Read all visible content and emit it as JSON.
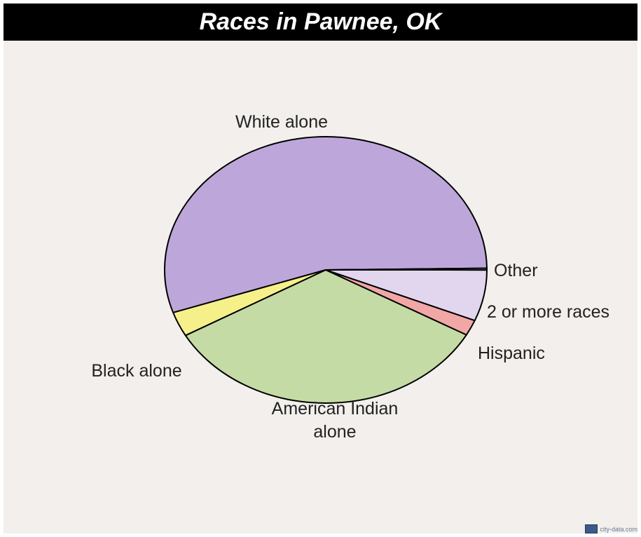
{
  "chart_data": {
    "type": "pie",
    "title": "Races in Pawnee, OK",
    "slices": [
      {
        "label": "White alone",
        "value": 55.0,
        "color": "#bda7da"
      },
      {
        "label": "Black alone",
        "value": 3.0,
        "color": "#f5f08a"
      },
      {
        "label": "American Indian alone",
        "label_lines": [
          "American Indian",
          "alone"
        ],
        "value": 33.7,
        "color": "#c5dba5"
      },
      {
        "label": "Hispanic",
        "value": 1.9,
        "color": "#f2a7a7"
      },
      {
        "label": "2 or more races",
        "value": 6.2,
        "color": "#e2d6ef"
      },
      {
        "label": "Other",
        "value": 0.2,
        "color": "#e2d6ef"
      }
    ]
  },
  "watermark": "city-data.com"
}
